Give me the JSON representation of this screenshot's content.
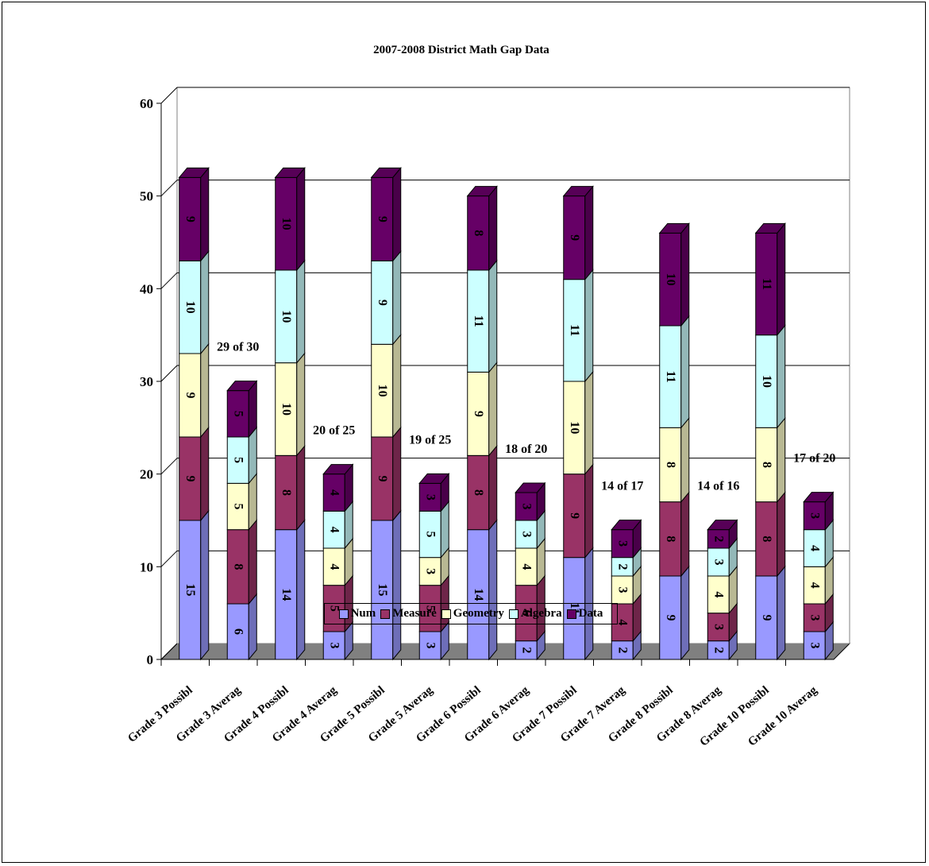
{
  "chart_data": {
    "type": "bar",
    "stacked": true,
    "title": "2007-2008 District Math Gap Data",
    "ylim": [
      0,
      60
    ],
    "yticks": [
      0,
      10,
      20,
      30,
      40,
      50,
      60
    ],
    "grid": true,
    "legend_position": "bottom",
    "categories": [
      "Grade 3 Possibl",
      "Grade 3 Averag",
      "Grade 4 Possibl",
      "Grade 4 Averag",
      "Grade 5 Possibl",
      "Grade 5 Averag",
      "Grade 6 Possibl",
      "Grade 6 Averag",
      "Grade 7 Possibl",
      "Grade 7 Averag",
      "Grade 8 Possibl",
      "Grade 8 Averag",
      "Grade 10 Possibl",
      "Grade 10 Averag"
    ],
    "series": [
      {
        "name": "Num",
        "color": "#9999ff",
        "values": [
          15,
          6,
          14,
          3,
          15,
          3,
          14,
          2,
          11,
          2,
          9,
          2,
          9,
          3
        ]
      },
      {
        "name": "Measure",
        "color": "#993366",
        "values": [
          9,
          8,
          8,
          5,
          9,
          5,
          8,
          6,
          9,
          4,
          8,
          3,
          8,
          3
        ]
      },
      {
        "name": "Geometry",
        "color": "#ffffcc",
        "values": [
          9,
          5,
          10,
          4,
          10,
          3,
          9,
          4,
          10,
          3,
          8,
          4,
          8,
          4
        ]
      },
      {
        "name": "Algebra",
        "color": "#ccffff",
        "values": [
          10,
          5,
          10,
          4,
          9,
          5,
          11,
          3,
          11,
          2,
          11,
          3,
          10,
          4
        ]
      },
      {
        "name": "Data",
        "color": "#660066",
        "values": [
          9,
          5,
          10,
          4,
          9,
          3,
          8,
          3,
          9,
          3,
          10,
          2,
          11,
          3
        ]
      }
    ],
    "annotations": [
      {
        "category_index": 1,
        "text": "29 of 30"
      },
      {
        "category_index": 3,
        "text": "20 of 25"
      },
      {
        "category_index": 5,
        "text": "19 of 25"
      },
      {
        "category_index": 7,
        "text": "18 of 20"
      },
      {
        "category_index": 9,
        "text": "14 of 17"
      },
      {
        "category_index": 11,
        "text": "14 of 16"
      },
      {
        "category_index": 13,
        "text": "17 of 20"
      }
    ]
  }
}
